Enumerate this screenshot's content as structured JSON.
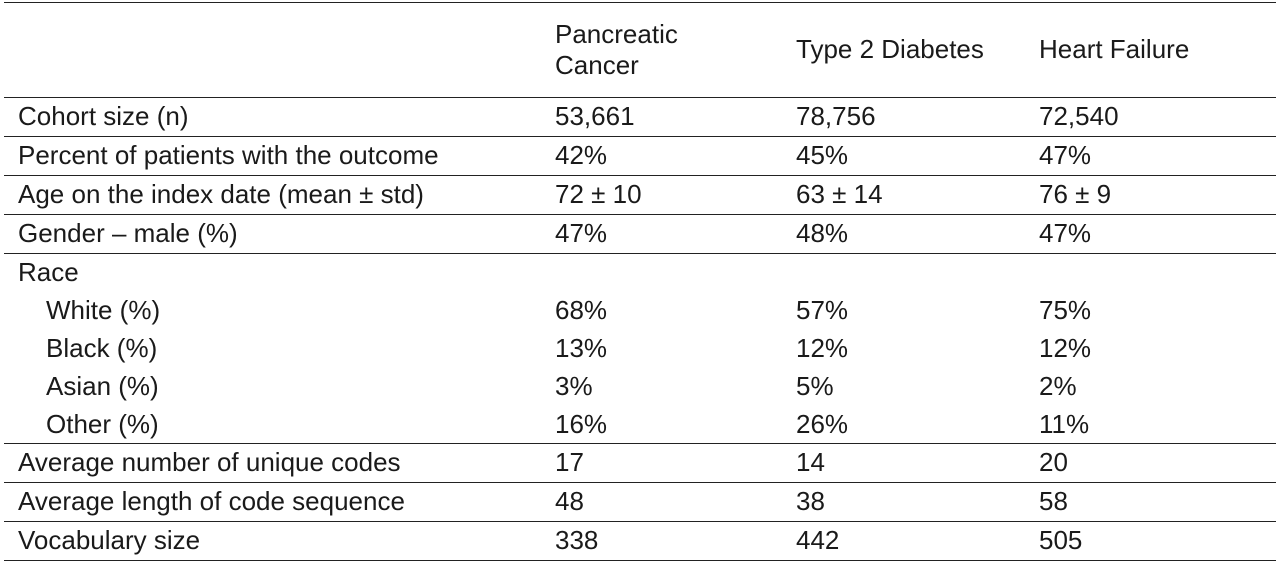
{
  "table": {
    "headers": [
      "",
      "Pancreatic Cancer",
      "Type 2 Diabetes",
      "Heart Failure"
    ],
    "header_lines": {
      "col1": [
        "Pancreatic",
        "Cancer"
      ]
    },
    "rows": [
      {
        "label": "Cohort size (n)",
        "values": [
          "53,661",
          "78,756",
          "72,540"
        ]
      },
      {
        "label": "Percent of patients with the outcome",
        "values": [
          "42%",
          "45%",
          "47%"
        ]
      },
      {
        "label": "Age on the index date (mean ± std)",
        "values": [
          "72 ± 10",
          "63 ± 14",
          "76 ± 9"
        ]
      },
      {
        "label": "Gender – male (%)",
        "values": [
          "47%",
          "48%",
          "47%"
        ]
      }
    ],
    "race": {
      "label": "Race",
      "subrows": [
        {
          "label": "White (%)",
          "values": [
            "68%",
            "57%",
            "75%"
          ]
        },
        {
          "label": "Black (%)",
          "values": [
            "13%",
            "12%",
            "12%"
          ]
        },
        {
          "label": "Asian (%)",
          "values": [
            "3%",
            "5%",
            "2%"
          ]
        },
        {
          "label": "Other (%)",
          "values": [
            "16%",
            "26%",
            "11%"
          ]
        }
      ]
    },
    "tail_rows": [
      {
        "label": "Average number of unique codes",
        "values": [
          "17",
          "14",
          "20"
        ]
      },
      {
        "label": "Average length of code sequence",
        "values": [
          "48",
          "38",
          "58"
        ]
      },
      {
        "label": "Vocabulary size",
        "values": [
          "338",
          "442",
          "505"
        ]
      }
    ]
  }
}
